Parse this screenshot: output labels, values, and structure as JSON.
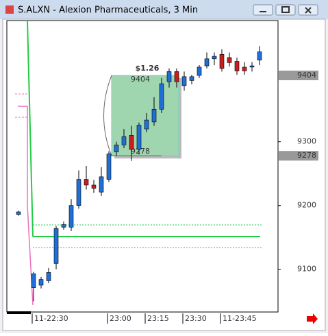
{
  "chart_data": {
    "type": "candlestick",
    "title": "S.ALXN - Alexion Pharmaceuticals, 3 Min",
    "categories": [
      null,
      null,
      "11-22:30",
      null,
      null,
      null,
      null,
      null,
      null,
      null,
      null,
      null,
      "23:00",
      null,
      null,
      null,
      null,
      "23:15",
      null,
      null,
      null,
      null,
      "23:30",
      null,
      null,
      null,
      null,
      "11-23:45",
      null,
      null,
      null,
      null,
      null
    ],
    "open": [
      9186,
      null,
      9071,
      9075,
      9082,
      9109,
      9166,
      9166,
      9200,
      9241,
      9232,
      9221,
      9241,
      9284,
      9295,
      9310,
      9288,
      9320,
      9331,
      9351,
      9394,
      9410,
      9388,
      9396,
      9404,
      9419,
      9430,
      9437,
      9432,
      9426,
      9417,
      9417,
      9428
    ],
    "high": [
      9192,
      null,
      9096,
      9088,
      9102,
      9168,
      9175,
      9210,
      9255,
      9262,
      9240,
      9260,
      9285,
      9300,
      9320,
      9325,
      9330,
      9345,
      9370,
      9400,
      9415,
      9415,
      9410,
      9405,
      9420,
      9440,
      9440,
      9445,
      9440,
      9432,
      9425,
      9425,
      9450
    ],
    "low": [
      9184,
      null,
      9050,
      9070,
      9078,
      9100,
      9162,
      9160,
      9195,
      9225,
      9220,
      9215,
      9237,
      9278,
      9290,
      9270,
      9280,
      9315,
      9325,
      9345,
      9385,
      9385,
      9380,
      9390,
      9400,
      9415,
      9420,
      9410,
      9418,
      9405,
      9405,
      9410,
      9420
    ],
    "close": [
      9190,
      null,
      9093,
      9084,
      9095,
      9164,
      9170,
      9200,
      9241,
      9232,
      9227,
      9245,
      9281,
      9295,
      9308,
      9288,
      9326,
      9334,
      9351,
      9391,
      9410,
      9394,
      9402,
      9402,
      9417,
      9430,
      9434,
      9415,
      9424,
      9411,
      9411,
      9419,
      9441
    ],
    "up_color": "#1f6fd8",
    "down_color": "#c81e1e",
    "ylim": [
      9033,
      9490
    ],
    "yticks": [
      9100,
      9200,
      9300
    ],
    "price_markers": [
      9404,
      9278
    ],
    "annotation": {
      "label": "$1.26",
      "from": 9278,
      "to": 9404
    }
  }
}
